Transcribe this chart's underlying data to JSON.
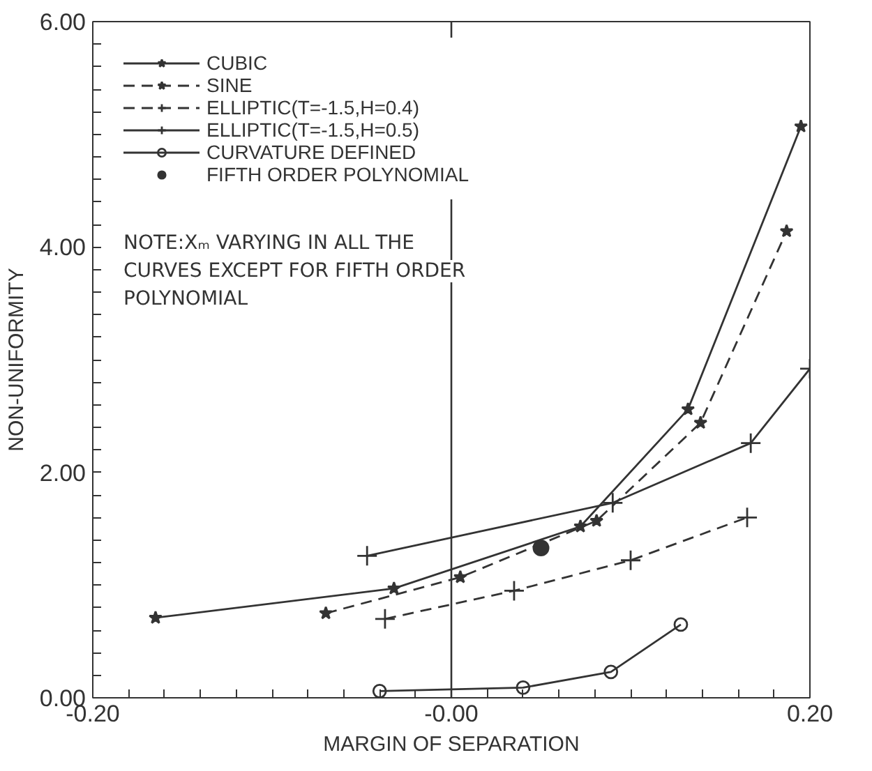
{
  "chart_data": {
    "type": "line",
    "xlabel": "MARGIN OF SEPARATION",
    "ylabel": "NON-UNIFORMITY",
    "xlim": [
      -0.2,
      0.2
    ],
    "ylim": [
      0,
      6
    ],
    "xticks": [
      {
        "value": -0.2,
        "label": "-0.20"
      },
      {
        "value": -0.18,
        "label": null
      },
      {
        "value": -0.16,
        "label": null
      },
      {
        "value": -0.14,
        "label": null
      },
      {
        "value": -0.12,
        "label": null
      },
      {
        "value": -0.1,
        "label": null
      },
      {
        "value": -0.08,
        "label": null
      },
      {
        "value": -0.06,
        "label": null
      },
      {
        "value": -0.04,
        "label": null
      },
      {
        "value": -0.02,
        "label": null
      },
      {
        "value": 0,
        "label": "-0.00"
      },
      {
        "value": 0.02,
        "label": null
      },
      {
        "value": 0.04,
        "label": null
      },
      {
        "value": 0.06,
        "label": null
      },
      {
        "value": 0.08,
        "label": null
      },
      {
        "value": 0.1,
        "label": null
      },
      {
        "value": 0.12,
        "label": null
      },
      {
        "value": 0.14,
        "label": null
      },
      {
        "value": 0.16,
        "label": null
      },
      {
        "value": 0.18,
        "label": null
      },
      {
        "value": 0.2,
        "label": "0.20"
      }
    ],
    "yticks": [
      {
        "value": 0,
        "label": "0.00"
      },
      {
        "value": 0.2,
        "label": null
      },
      {
        "value": 0.4,
        "label": null
      },
      {
        "value": 0.6,
        "label": null
      },
      {
        "value": 0.8,
        "label": null
      },
      {
        "value": 1,
        "label": null
      },
      {
        "value": 1.2,
        "label": null
      },
      {
        "value": 1.4,
        "label": null
      },
      {
        "value": 1.6,
        "label": null
      },
      {
        "value": 1.8,
        "label": null
      },
      {
        "value": 2,
        "label": "2.00"
      },
      {
        "value": 2.2,
        "label": null
      },
      {
        "value": 2.4,
        "label": null
      },
      {
        "value": 2.6,
        "label": null
      },
      {
        "value": 2.8,
        "label": null
      },
      {
        "value": 3,
        "label": null
      },
      {
        "value": 3.2,
        "label": null
      },
      {
        "value": 3.4,
        "label": null
      },
      {
        "value": 3.6,
        "label": null
      },
      {
        "value": 3.8,
        "label": null
      },
      {
        "value": 4,
        "label": "4.00"
      },
      {
        "value": 4.2,
        "label": null
      },
      {
        "value": 4.4,
        "label": null
      },
      {
        "value": 4.6,
        "label": null
      },
      {
        "value": 4.8,
        "label": null
      },
      {
        "value": 5,
        "label": null
      },
      {
        "value": 5.2,
        "label": null
      },
      {
        "value": 5.4,
        "label": null
      },
      {
        "value": 5.6,
        "label": null
      },
      {
        "value": 5.8,
        "label": null
      },
      {
        "value": 6,
        "label": "6.00"
      }
    ],
    "grid": false,
    "legend": "top left",
    "ref_lines": [
      {
        "axis": "x",
        "value": 0,
        "color": "#333333"
      }
    ],
    "annotations": [
      "NOTE:Xₘ VARYING IN ALL THE CURVES EXCEPT FOR FIFTH ORDER POLYNOMIAL"
    ],
    "series": [
      {
        "name": "CUBIC",
        "color": "#333333",
        "marker": "star",
        "line_style": "solid",
        "x": [
          -0.165,
          -0.032,
          0.072,
          0.132,
          0.195
        ],
        "values": [
          0.71,
          0.97,
          1.52,
          2.56,
          5.07
        ]
      },
      {
        "name": "SINE",
        "color": "#333333",
        "marker": "star",
        "line_style": "dashed",
        "x": [
          -0.07,
          0.005,
          0.081,
          0.139,
          0.187
        ],
        "values": [
          0.75,
          1.07,
          1.57,
          2.44,
          4.14
        ]
      },
      {
        "name": "ELLIPTIC(T=-1.5,H=0.4)",
        "color": "#333333",
        "marker": "cross",
        "line_style": "dashed",
        "x": [
          -0.037,
          0.035,
          0.1,
          0.165
        ],
        "values": [
          0.7,
          0.95,
          1.22,
          1.6
        ]
      },
      {
        "name": "ELLIPTIC(T=-1.5,H=0.5)",
        "color": "#333333",
        "marker": "cross",
        "line_style": "solid",
        "x": [
          -0.047,
          0.09,
          0.167,
          0.2
        ],
        "values": [
          1.26,
          1.73,
          2.26,
          2.92
        ]
      },
      {
        "name": "CURVATURE DEFINED",
        "color": "#333333",
        "marker": "circle",
        "line_style": "solid",
        "x": [
          -0.04,
          0.04,
          0.089,
          0.128
        ],
        "values": [
          0.06,
          0.09,
          0.23,
          0.65
        ]
      },
      {
        "name": "FIFTH ORDER POLYNOMIAL",
        "type": "scatter",
        "color": "#333333",
        "marker": "circle",
        "x": [
          0.05
        ],
        "values": [
          1.33
        ]
      }
    ]
  }
}
